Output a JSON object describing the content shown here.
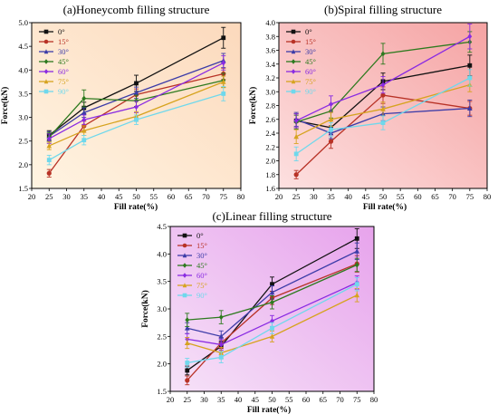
{
  "chart_data": [
    {
      "type": "line",
      "title": "(a)Honeycomb filling structure",
      "xlabel": "Fill rate(%)",
      "ylabel": "Force(kN)",
      "xlim": [
        20,
        80
      ],
      "ylim": [
        1.5,
        5.0
      ],
      "xticks": [
        20,
        25,
        30,
        35,
        40,
        45,
        50,
        55,
        60,
        65,
        70,
        75,
        80
      ],
      "yticks": [
        1.5,
        2.0,
        2.5,
        3.0,
        3.5,
        4.0,
        4.5,
        5.0
      ],
      "legend": "top-left",
      "background": [
        "#fff4e2",
        "#fcd9bc"
      ],
      "x": [
        25,
        35,
        50,
        75
      ],
      "series": [
        {
          "name": "0°",
          "color": "#111111",
          "values": [
            2.62,
            3.2,
            3.72,
            4.68
          ],
          "errors": [
            0.1,
            0.12,
            0.17,
            0.22
          ]
        },
        {
          "name": "15°",
          "color": "#b83226",
          "values": [
            1.82,
            2.82,
            3.48,
            3.92
          ],
          "errors": [
            0.08,
            0.1,
            0.12,
            0.12
          ]
        },
        {
          "name": "30°",
          "color": "#3c3ca8",
          "values": [
            2.6,
            3.1,
            3.52,
            4.2
          ],
          "errors": [
            0.1,
            0.1,
            0.12,
            0.15
          ]
        },
        {
          "name": "45°",
          "color": "#2d7a1e",
          "values": [
            2.58,
            3.4,
            3.35,
            3.78
          ],
          "errors": [
            0.1,
            0.18,
            0.12,
            0.15
          ]
        },
        {
          "name": "60°",
          "color": "#8a2be2",
          "values": [
            2.55,
            2.95,
            3.22,
            4.15
          ],
          "errors": [
            0.1,
            0.1,
            0.12,
            0.15
          ]
        },
        {
          "name": "75°",
          "color": "#d6a31f",
          "values": [
            2.4,
            2.72,
            3.02,
            3.75
          ],
          "errors": [
            0.08,
            0.1,
            0.1,
            0.12
          ]
        },
        {
          "name": "90°",
          "color": "#6fd8ec",
          "values": [
            2.1,
            2.52,
            2.95,
            3.5
          ],
          "errors": [
            0.1,
            0.1,
            0.1,
            0.15
          ]
        }
      ]
    },
    {
      "type": "line",
      "title": "(b)Spiral filling structure",
      "xlabel": "Fill rate(%)",
      "ylabel": "Force(kN)",
      "xlim": [
        20,
        80
      ],
      "ylim": [
        1.6,
        4.0
      ],
      "xticks": [
        20,
        25,
        30,
        35,
        40,
        45,
        50,
        55,
        60,
        65,
        70,
        75,
        80
      ],
      "yticks": [
        1.6,
        1.8,
        2.0,
        2.2,
        2.4,
        2.6,
        2.8,
        3.0,
        3.2,
        3.4,
        3.6,
        3.8,
        4.0
      ],
      "legend": "top-left",
      "background": [
        "#fde0e0",
        "#f5a3a3"
      ],
      "x": [
        25,
        35,
        50,
        75
      ],
      "series": [
        {
          "name": "0°",
          "color": "#111111",
          "values": [
            2.58,
            2.48,
            3.15,
            3.38
          ],
          "errors": [
            0.1,
            0.1,
            0.12,
            0.15
          ]
        },
        {
          "name": "15°",
          "color": "#b83226",
          "values": [
            1.8,
            2.28,
            2.95,
            2.76
          ],
          "errors": [
            0.06,
            0.1,
            0.12,
            0.1
          ]
        },
        {
          "name": "30°",
          "color": "#3c3ca8",
          "values": [
            2.6,
            2.4,
            2.68,
            2.76
          ],
          "errors": [
            0.1,
            0.08,
            0.1,
            0.12
          ]
        },
        {
          "name": "45°",
          "color": "#2d7a1e",
          "values": [
            2.56,
            2.72,
            3.55,
            3.72
          ],
          "errors": [
            0.1,
            0.1,
            0.15,
            0.15
          ]
        },
        {
          "name": "60°",
          "color": "#8a2be2",
          "values": [
            2.58,
            2.82,
            3.1,
            3.8
          ],
          "errors": [
            0.1,
            0.12,
            0.12,
            0.18
          ]
        },
        {
          "name": "75°",
          "color": "#d6a31f",
          "values": [
            2.35,
            2.6,
            2.75,
            3.1
          ],
          "errors": [
            0.1,
            0.1,
            0.1,
            0.1
          ]
        },
        {
          "name": "90°",
          "color": "#6fd8ec",
          "values": [
            2.1,
            2.45,
            2.55,
            3.2
          ],
          "errors": [
            0.1,
            0.1,
            0.1,
            0.12
          ]
        }
      ]
    },
    {
      "type": "line",
      "title": "(c)Linear filling structure",
      "xlabel": "Fill rate(%)",
      "ylabel": "Force(kN)",
      "xlim": [
        20,
        80
      ],
      "ylim": [
        1.5,
        4.5
      ],
      "xticks": [
        20,
        25,
        30,
        35,
        40,
        45,
        50,
        55,
        60,
        65,
        70,
        75,
        80
      ],
      "yticks": [
        1.5,
        2.0,
        2.5,
        3.0,
        3.5,
        4.0,
        4.5
      ],
      "legend": "top-left",
      "background": [
        "#f6e2f8",
        "#e7a3ec"
      ],
      "x": [
        25,
        35,
        50,
        75
      ],
      "series": [
        {
          "name": "0°",
          "color": "#111111",
          "values": [
            1.88,
            2.32,
            3.45,
            4.28
          ],
          "errors": [
            0.08,
            0.1,
            0.13,
            0.18
          ]
        },
        {
          "name": "15°",
          "color": "#b83226",
          "values": [
            1.7,
            2.38,
            3.2,
            3.82
          ],
          "errors": [
            0.08,
            0.1,
            0.12,
            0.15
          ]
        },
        {
          "name": "30°",
          "color": "#3c3ca8",
          "values": [
            2.65,
            2.5,
            3.3,
            4.05
          ],
          "errors": [
            0.1,
            0.1,
            0.12,
            0.15
          ]
        },
        {
          "name": "45°",
          "color": "#2d7a1e",
          "values": [
            2.8,
            2.85,
            3.12,
            3.8
          ],
          "errors": [
            0.12,
            0.12,
            0.12,
            0.12
          ]
        },
        {
          "name": "60°",
          "color": "#8a2be2",
          "values": [
            2.45,
            2.35,
            2.78,
            3.48
          ],
          "errors": [
            0.1,
            0.1,
            0.1,
            0.12
          ]
        },
        {
          "name": "75°",
          "color": "#d6a31f",
          "values": [
            2.38,
            2.2,
            2.5,
            3.25
          ],
          "errors": [
            0.1,
            0.1,
            0.1,
            0.12
          ]
        },
        {
          "name": "90°",
          "color": "#6fd8ec",
          "values": [
            2.02,
            2.12,
            2.65,
            3.45
          ],
          "errors": [
            0.08,
            0.1,
            0.1,
            0.12
          ]
        }
      ]
    }
  ]
}
